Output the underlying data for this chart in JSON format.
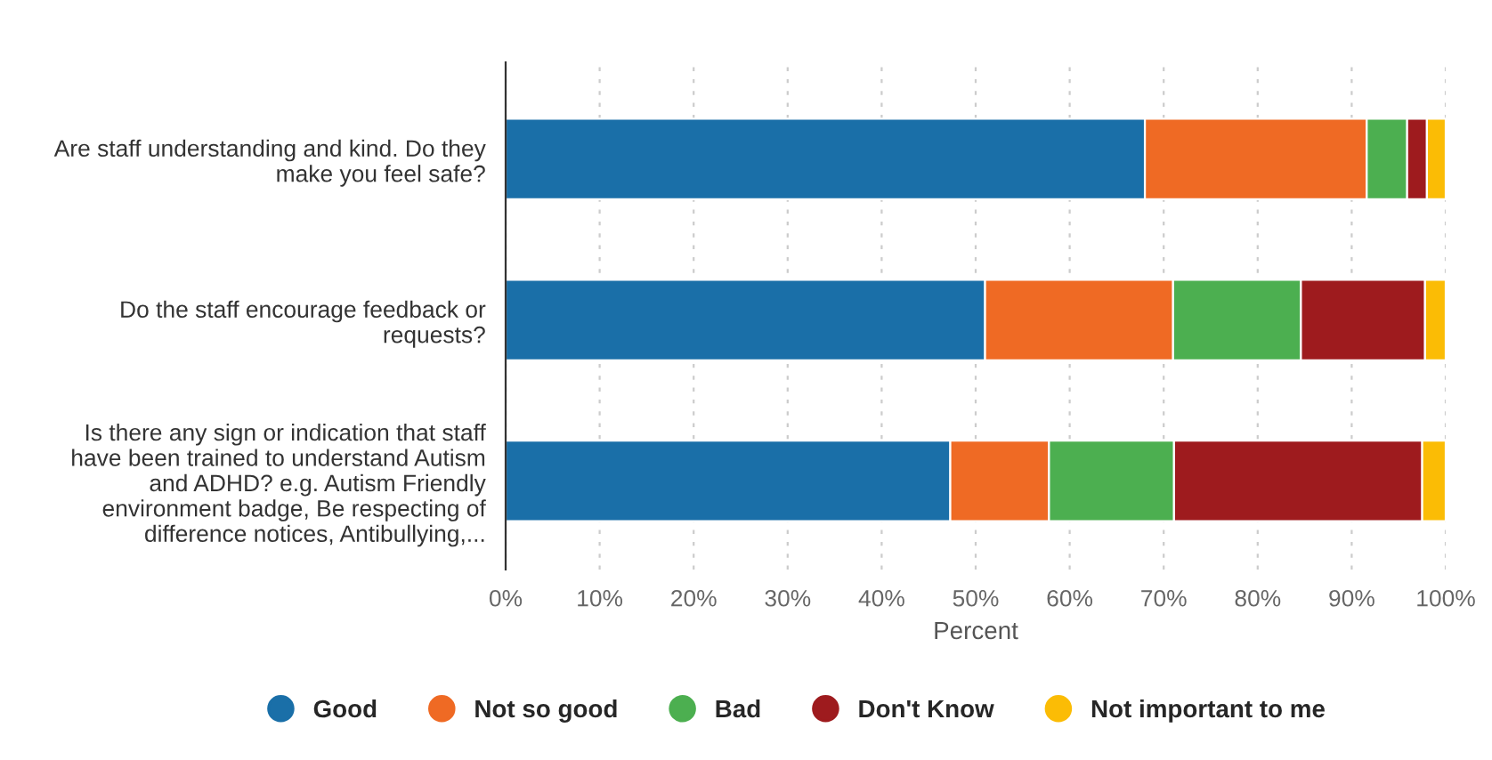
{
  "chart_data": {
    "type": "bar",
    "orientation": "horizontal",
    "stacked": true,
    "categories": [
      "Are staff understanding and kind. Do they\nmake you feel safe?",
      "Do the staff encourage feedback or\nrequests?",
      "Is there any sign or indication that staff\nhave been trained to understand Autism\nand ADHD? e.g. Autism Friendly\nenvironment badge, Be respecting of\ndifference notices, Antibullying,..."
    ],
    "series": [
      {
        "name": "Good",
        "color": "#1a6fa8",
        "values": [
          68,
          51,
          47.3
        ]
      },
      {
        "name": "Not so good",
        "color": "#ef6a24",
        "values": [
          23.6,
          20,
          10.5
        ]
      },
      {
        "name": "Bad",
        "color": "#4caf50",
        "values": [
          4.3,
          13.6,
          13.3
        ]
      },
      {
        "name": "Don't Know",
        "color": "#9e1b1e",
        "values": [
          2.1,
          13.2,
          26.4
        ]
      },
      {
        "name": "Not important to me",
        "color": "#fbbc05",
        "values": [
          2.0,
          2.2,
          2.5
        ]
      }
    ],
    "xlim": [
      0,
      100
    ],
    "xticks": [
      {
        "value": 0,
        "label": "0%"
      },
      {
        "value": 10,
        "label": "10%"
      },
      {
        "value": 20,
        "label": "20%"
      },
      {
        "value": 30,
        "label": "30%"
      },
      {
        "value": 40,
        "label": "40%"
      },
      {
        "value": 50,
        "label": "50%"
      },
      {
        "value": 60,
        "label": "60%"
      },
      {
        "value": 70,
        "label": "70%"
      },
      {
        "value": 80,
        "label": "80%"
      },
      {
        "value": 90,
        "label": "90%"
      },
      {
        "value": 100,
        "label": "100%"
      }
    ],
    "xlabel": "Percent",
    "grid": "x",
    "legend": "bottom",
    "marker": "circle"
  }
}
